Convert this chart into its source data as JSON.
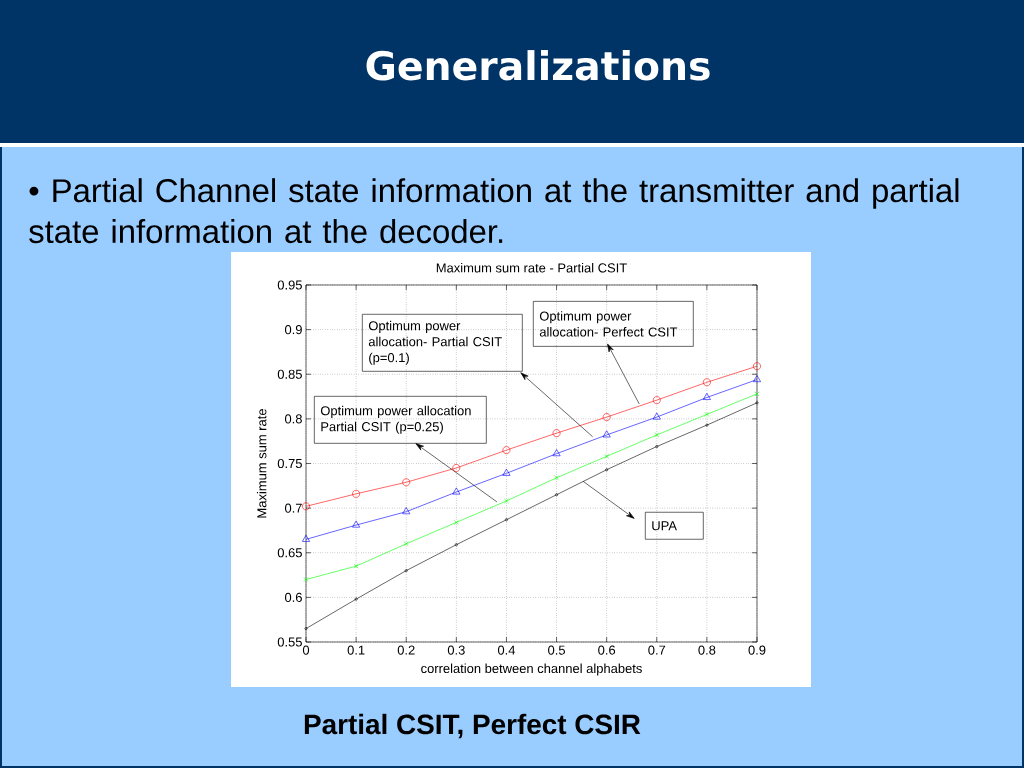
{
  "chart_data": {
    "type": "line",
    "title": "Maximum sum rate - Partial CSIT",
    "xlabel": "correlation between channel alphabets",
    "ylabel": "Maximum sum rate",
    "x": [
      0,
      0.1,
      0.2,
      0.3,
      0.4,
      0.5,
      0.6,
      0.7,
      0.8,
      0.9
    ],
    "series": [
      {
        "color": "#ff0000",
        "marker": "circle",
        "values": [
          0.702,
          0.716,
          0.729,
          0.745,
          0.765,
          0.784,
          0.802,
          0.821,
          0.841,
          0.859
        ]
      },
      {
        "color": "#0000ff",
        "marker": "triangle",
        "values": [
          0.665,
          0.681,
          0.696,
          0.718,
          0.739,
          0.761,
          0.782,
          0.802,
          0.824,
          0.844
        ]
      },
      {
        "color": "#00ff00",
        "marker": "cross",
        "values": [
          0.62,
          0.635,
          0.66,
          0.684,
          0.708,
          0.734,
          0.758,
          0.782,
          0.805,
          0.828
        ]
      },
      {
        "color": "#000000",
        "marker": "circle",
        "values": [
          0.565,
          0.598,
          0.63,
          0.659,
          0.687,
          0.715,
          0.743,
          0.769,
          0.793,
          0.818
        ]
      }
    ],
    "xlim": [
      0,
      0.9
    ],
    "ylim": [
      0.55,
      0.95
    ],
    "xticks": [
      0,
      0.1,
      0.2,
      0.3,
      0.4,
      0.5,
      0.6,
      0.7,
      0.8,
      0.9
    ],
    "yticks": [
      0.55,
      0.6,
      0.65,
      0.7,
      0.75,
      0.8,
      0.85,
      0.9,
      0.95
    ],
    "grid": true,
    "annotations": [
      "Generalizations",
      "• Partial Channel state information at the transmitter and partial state information at the decoder.",
      "Partial CSIT, Perfect CSIR",
      "Optimum power allocation- Partial CSIT (p=0.1)",
      "Optimum power allocation Partial CSIT (p=0.25)",
      "Optimum power allocation- Perfect CSIT",
      "UPA"
    ]
  }
}
